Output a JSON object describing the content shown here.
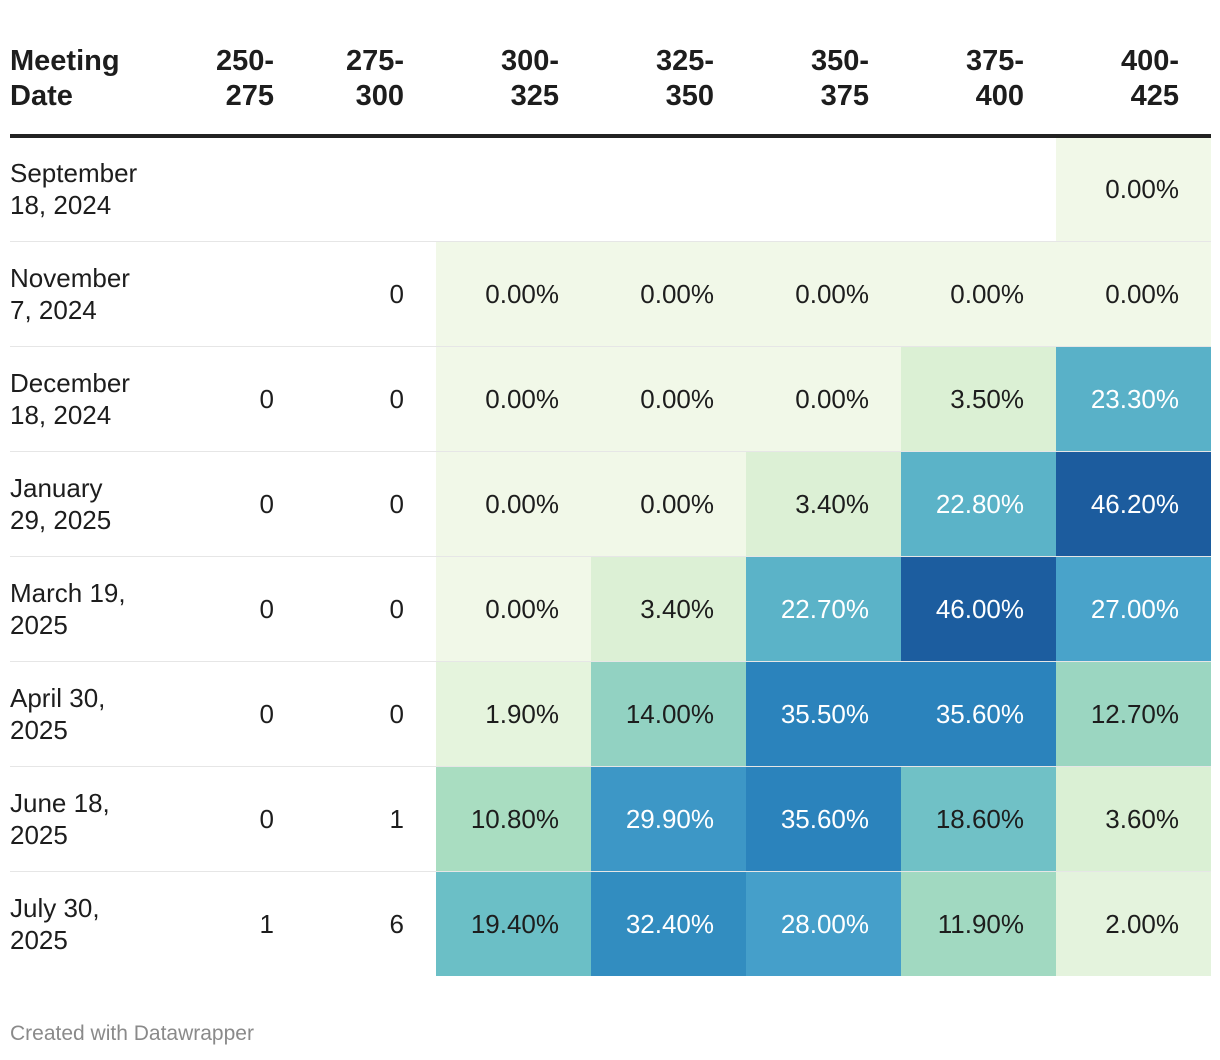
{
  "chart_data": {
    "type": "heatmap",
    "title": "",
    "row_header": "Meeting Date",
    "columns": [
      "250-\n275",
      "275-\n300",
      "300-\n325",
      "325-\n350",
      "350-\n375",
      "375-\n400",
      "400-\n425"
    ],
    "rows": [
      {
        "date": "September\n18, 2024",
        "cells": [
          {
            "text": "",
            "value": null
          },
          {
            "text": "",
            "value": null
          },
          {
            "text": "",
            "value": null
          },
          {
            "text": "",
            "value": null
          },
          {
            "text": "",
            "value": null
          },
          {
            "text": "",
            "value": null
          },
          {
            "text": "0.00%",
            "value": 0.0
          }
        ]
      },
      {
        "date": "November\n7, 2024",
        "cells": [
          {
            "text": "",
            "value": null
          },
          {
            "text": "0",
            "value": null
          },
          {
            "text": "0.00%",
            "value": 0.0
          },
          {
            "text": "0.00%",
            "value": 0.0
          },
          {
            "text": "0.00%",
            "value": 0.0
          },
          {
            "text": "0.00%",
            "value": 0.0
          },
          {
            "text": "0.00%",
            "value": 0.0
          }
        ]
      },
      {
        "date": "December\n18, 2024",
        "cells": [
          {
            "text": "0",
            "value": null
          },
          {
            "text": "0",
            "value": null
          },
          {
            "text": "0.00%",
            "value": 0.0
          },
          {
            "text": "0.00%",
            "value": 0.0
          },
          {
            "text": "0.00%",
            "value": 0.0
          },
          {
            "text": "3.50%",
            "value": 3.5
          },
          {
            "text": "23.30%",
            "value": 23.3
          }
        ]
      },
      {
        "date": "January\n29, 2025",
        "cells": [
          {
            "text": "0",
            "value": null
          },
          {
            "text": "0",
            "value": null
          },
          {
            "text": "0.00%",
            "value": 0.0
          },
          {
            "text": "0.00%",
            "value": 0.0
          },
          {
            "text": "3.40%",
            "value": 3.4
          },
          {
            "text": "22.80%",
            "value": 22.8
          },
          {
            "text": "46.20%",
            "value": 46.2
          }
        ]
      },
      {
        "date": "March 19,\n2025",
        "cells": [
          {
            "text": "0",
            "value": null
          },
          {
            "text": "0",
            "value": null
          },
          {
            "text": "0.00%",
            "value": 0.0
          },
          {
            "text": "3.40%",
            "value": 3.4
          },
          {
            "text": "22.70%",
            "value": 22.7
          },
          {
            "text": "46.00%",
            "value": 46.0
          },
          {
            "text": "27.00%",
            "value": 27.0
          }
        ]
      },
      {
        "date": "April 30,\n2025",
        "cells": [
          {
            "text": "0",
            "value": null
          },
          {
            "text": "0",
            "value": null
          },
          {
            "text": "1.90%",
            "value": 1.9
          },
          {
            "text": "14.00%",
            "value": 14.0
          },
          {
            "text": "35.50%",
            "value": 35.5
          },
          {
            "text": "35.60%",
            "value": 35.6
          },
          {
            "text": "12.70%",
            "value": 12.7
          }
        ]
      },
      {
        "date": "June 18,\n2025",
        "cells": [
          {
            "text": "0",
            "value": null
          },
          {
            "text": "1",
            "value": null
          },
          {
            "text": "10.80%",
            "value": 10.8
          },
          {
            "text": "29.90%",
            "value": 29.9
          },
          {
            "text": "35.60%",
            "value": 35.6
          },
          {
            "text": "18.60%",
            "value": 18.6
          },
          {
            "text": "3.60%",
            "value": 3.6
          }
        ]
      },
      {
        "date": "July 30,\n2025",
        "cells": [
          {
            "text": "1",
            "value": null
          },
          {
            "text": "6",
            "value": null
          },
          {
            "text": "19.40%",
            "value": 19.4
          },
          {
            "text": "32.40%",
            "value": 32.4
          },
          {
            "text": "28.00%",
            "value": 28.0
          },
          {
            "text": "11.90%",
            "value": 11.9
          },
          {
            "text": "2.00%",
            "value": 2.0
          }
        ]
      }
    ],
    "color_scale": {
      "stops": [
        {
          "value": 0,
          "color": "#f1f8e8"
        },
        {
          "value": 3.5,
          "color": "#dbf0d4"
        },
        {
          "value": 11,
          "color": "#a8dcc0"
        },
        {
          "value": 19,
          "color": "#6dc0c6"
        },
        {
          "value": 23,
          "color": "#5ab2c8"
        },
        {
          "value": 28,
          "color": "#459fca"
        },
        {
          "value": 33,
          "color": "#2f8abf"
        },
        {
          "value": 36,
          "color": "#2a82bb"
        },
        {
          "value": 46.2,
          "color": "#1c5c9e"
        }
      ],
      "light_text_threshold": 20,
      "dark_text": "#1d1d1d",
      "light_text": "#ffffff"
    }
  },
  "footer": {
    "credit": "Created with Datawrapper"
  }
}
